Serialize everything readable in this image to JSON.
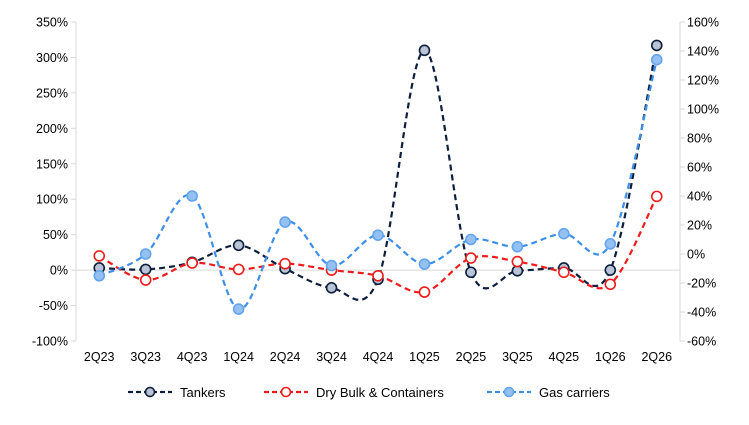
{
  "chart_data": {
    "type": "line",
    "title": "",
    "xlabel": "",
    "ylabel": "",
    "y2label": "",
    "grid": false,
    "legend_position": "bottom",
    "categories": [
      "2Q23",
      "3Q23",
      "4Q23",
      "1Q24",
      "2Q24",
      "3Q24",
      "4Q24",
      "1Q25",
      "2Q25",
      "3Q25",
      "4Q25",
      "1Q26",
      "2Q26"
    ],
    "ylim": [
      -100,
      350
    ],
    "y2lim": [
      -60,
      160
    ],
    "y_ticks": [
      "-100%",
      "-50%",
      "0%",
      "50%",
      "100%",
      "150%",
      "200%",
      "250%",
      "300%",
      "350%"
    ],
    "y2_ticks": [
      "-60%",
      "-40%",
      "-20%",
      "0%",
      "20%",
      "40%",
      "60%",
      "80%",
      "100%",
      "120%",
      "140%",
      "160%"
    ],
    "series": [
      {
        "name": "Tankers",
        "axis": "left",
        "color": "#0d1f3c",
        "values": [
          3,
          1,
          11,
          35,
          2,
          -25,
          -13,
          310,
          -3,
          -1,
          3,
          0,
          317
        ]
      },
      {
        "name": "Dry Bulk & Containers",
        "axis": "left",
        "color": "#ee1c1c",
        "values": [
          20,
          -14,
          10,
          1,
          9,
          0,
          -8,
          -31,
          17,
          12,
          -3,
          -20,
          104
        ]
      },
      {
        "name": "Gas carriers",
        "axis": "right",
        "color": "#3d8fe8",
        "values": [
          -15,
          0,
          40,
          -38,
          22,
          -8,
          13,
          -7,
          10,
          5,
          14,
          7,
          134
        ]
      }
    ]
  }
}
